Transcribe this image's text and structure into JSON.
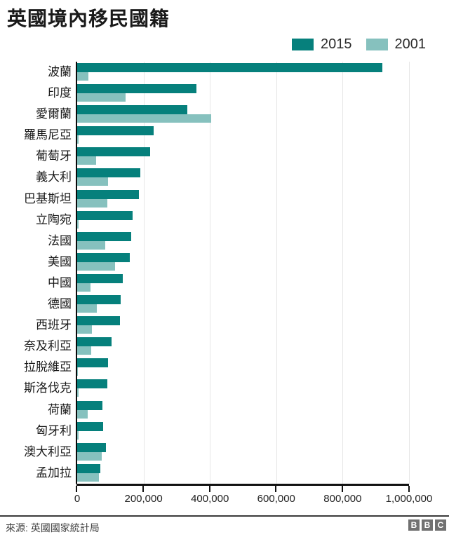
{
  "title": "英國境內移民國籍",
  "legend": {
    "items": [
      {
        "label": "2015",
        "color": "#06807c"
      },
      {
        "label": "2001",
        "color": "#86c1be"
      }
    ]
  },
  "footer": {
    "source": "來源: 英國國家統計局",
    "logo_letters": [
      "B",
      "B",
      "C"
    ],
    "logo_color": "#717171"
  },
  "colors": {
    "series_2015": "#06807c",
    "series_2001": "#86c1be",
    "axis": "#111111",
    "gridline": "#e6e6e6",
    "text": "#1a1a1a"
  },
  "chart_data": {
    "type": "bar",
    "orientation": "horizontal",
    "title": "英國境內移民國籍",
    "xlabel": "",
    "ylabel": "",
    "xlim": [
      0,
      1000000
    ],
    "grid": "vertical-only",
    "legend_position": "top-right",
    "x_ticks": [
      0,
      200000,
      400000,
      600000,
      800000,
      1000000
    ],
    "x_tick_labels": [
      "0",
      "200,000",
      "400,000",
      "600,000",
      "800,000",
      "1,000,000"
    ],
    "categories": [
      "波蘭",
      "印度",
      "愛爾蘭",
      "羅馬尼亞",
      "葡萄牙",
      "義大利",
      "巴基斯坦",
      "立陶宛",
      "法國",
      "美國",
      "中國",
      "德國",
      "西班牙",
      "奈及利亞",
      "拉脫維亞",
      "斯洛伐克",
      "荷蘭",
      "匈牙利",
      "澳大利亞",
      "孟加拉"
    ],
    "series": [
      {
        "name": "2015",
        "color": "#06807c",
        "values": [
          920000,
          360000,
          331000,
          231000,
          219000,
          190000,
          186000,
          167000,
          162000,
          158000,
          138000,
          131000,
          128000,
          103000,
          93000,
          90000,
          77000,
          79000,
          87000,
          69000
        ]
      },
      {
        "name": "2001",
        "color": "#86c1be",
        "values": [
          34000,
          145000,
          404000,
          4000,
          58000,
          94000,
          91000,
          4000,
          85000,
          114000,
          40000,
          59000,
          44000,
          43000,
          2000,
          5000,
          32000,
          4000,
          74000,
          65000
        ]
      }
    ]
  }
}
